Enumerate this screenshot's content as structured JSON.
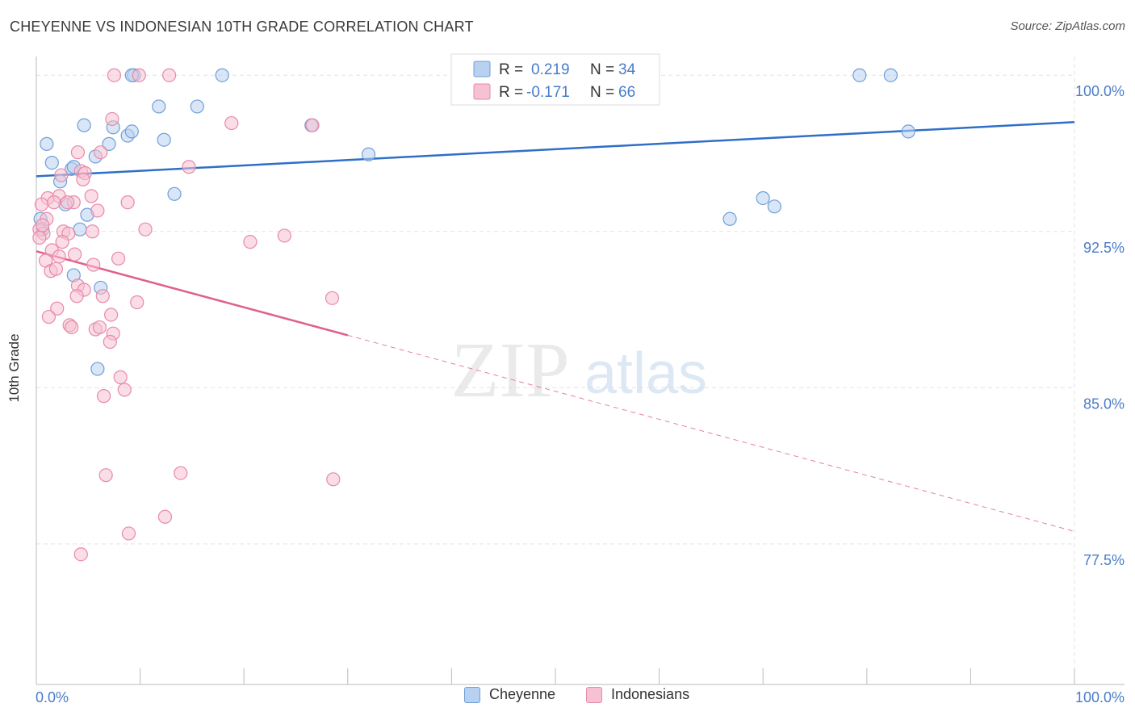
{
  "header": {
    "title": "CHEYENNE VS INDONESIAN 10TH GRADE CORRELATION CHART",
    "source": "Source: ZipAtlas.com"
  },
  "watermark": {
    "zip": "ZIP",
    "atlas": "atlas"
  },
  "colors": {
    "blue_fill": "#b8d1f0",
    "blue_stroke": "#6f9fd8",
    "blue_line": "#2f6fc7",
    "pink_fill": "#f6c1d2",
    "pink_stroke": "#e88aa8",
    "pink_line": "#e0608c",
    "axis_text": "#4a7cc8",
    "grid": "#e3e3e3"
  },
  "legend_top": {
    "rows": [
      {
        "r_label": "R =",
        "r_value": "0.219",
        "n_label": "N =",
        "n_value": "34"
      },
      {
        "r_label": "R =",
        "r_value": "-0.171",
        "n_label": "N =",
        "n_value": "66"
      }
    ]
  },
  "chart_data": {
    "type": "scatter",
    "title": "CHEYENNE VS INDONESIAN 10TH GRADE CORRELATION CHART",
    "xlabel": "",
    "ylabel": "10th Grade",
    "xlim": [
      0,
      100
    ],
    "ylim": [
      70.75,
      100.9
    ],
    "x_tick_labels": [
      "0.0%",
      "100.0%"
    ],
    "y_ticks": [
      100.0,
      92.5,
      85.0,
      77.5
    ],
    "y_tick_labels": [
      "100.0%",
      "92.5%",
      "85.0%",
      "77.5%"
    ],
    "grid": true,
    "legend": "top-center and bottom-center",
    "series": [
      {
        "name": "Cheyenne",
        "r": 0.219,
        "n": 34,
        "trend": {
          "x0": 0,
          "y0": 95.15,
          "x1": 100,
          "y1": 97.75,
          "solid_until": 100
        },
        "points": [
          [
            1.0,
            96.7
          ],
          [
            1.5,
            95.8
          ],
          [
            2.3,
            94.9
          ],
          [
            3.4,
            95.5
          ],
          [
            3.6,
            95.6
          ],
          [
            4.6,
            97.6
          ],
          [
            5.7,
            96.1
          ],
          [
            7.0,
            96.7
          ],
          [
            7.4,
            97.5
          ],
          [
            8.8,
            97.1
          ],
          [
            9.2,
            97.3
          ],
          [
            9.4,
            100.0
          ],
          [
            11.8,
            98.5
          ],
          [
            12.3,
            96.9
          ],
          [
            13.3,
            94.3
          ],
          [
            15.5,
            98.5
          ],
          [
            17.9,
            100.0
          ],
          [
            26.5,
            97.6
          ],
          [
            32.0,
            96.2
          ],
          [
            0.4,
            93.1
          ],
          [
            0.6,
            92.6
          ],
          [
            2.8,
            93.8
          ],
          [
            4.2,
            92.6
          ],
          [
            4.9,
            93.3
          ],
          [
            3.6,
            90.4
          ],
          [
            6.2,
            89.8
          ],
          [
            5.9,
            85.9
          ],
          [
            66.8,
            93.1
          ],
          [
            70.0,
            94.1
          ],
          [
            71.1,
            93.7
          ],
          [
            79.3,
            100.0
          ],
          [
            82.3,
            100.0
          ],
          [
            84.0,
            97.3
          ],
          [
            9.2,
            100.0
          ]
        ]
      },
      {
        "name": "Indonesians",
        "r": -0.171,
        "n": 66,
        "trend": {
          "x0": 0,
          "y0": 91.55,
          "x1": 100,
          "y1": 78.1,
          "solid_until": 30
        },
        "points": [
          [
            7.5,
            100.0
          ],
          [
            9.9,
            100.0
          ],
          [
            12.8,
            100.0
          ],
          [
            7.3,
            97.9
          ],
          [
            18.8,
            97.7
          ],
          [
            26.6,
            97.6
          ],
          [
            4.0,
            96.3
          ],
          [
            14.7,
            95.6
          ],
          [
            2.4,
            95.2
          ],
          [
            4.3,
            95.4
          ],
          [
            4.7,
            95.3
          ],
          [
            5.3,
            94.2
          ],
          [
            1.1,
            94.1
          ],
          [
            2.2,
            94.2
          ],
          [
            3.6,
            93.9
          ],
          [
            0.5,
            93.8
          ],
          [
            1.0,
            93.1
          ],
          [
            8.8,
            93.9
          ],
          [
            5.9,
            93.5
          ],
          [
            0.3,
            92.6
          ],
          [
            0.7,
            92.4
          ],
          [
            2.6,
            92.5
          ],
          [
            3.1,
            92.4
          ],
          [
            5.4,
            92.5
          ],
          [
            10.5,
            92.6
          ],
          [
            20.6,
            92.0
          ],
          [
            23.9,
            92.3
          ],
          [
            1.5,
            91.6
          ],
          [
            3.7,
            91.4
          ],
          [
            2.2,
            91.3
          ],
          [
            0.9,
            91.1
          ],
          [
            7.9,
            91.2
          ],
          [
            5.5,
            90.9
          ],
          [
            1.4,
            90.6
          ],
          [
            1.9,
            90.7
          ],
          [
            4.0,
            89.9
          ],
          [
            4.6,
            89.7
          ],
          [
            3.9,
            89.4
          ],
          [
            6.4,
            89.4
          ],
          [
            9.7,
            89.1
          ],
          [
            28.5,
            89.3
          ],
          [
            2.0,
            88.8
          ],
          [
            1.2,
            88.4
          ],
          [
            3.2,
            88.0
          ],
          [
            7.2,
            88.5
          ],
          [
            5.7,
            87.8
          ],
          [
            6.1,
            87.9
          ],
          [
            3.4,
            87.9
          ],
          [
            7.4,
            87.6
          ],
          [
            7.1,
            87.2
          ],
          [
            8.1,
            85.5
          ],
          [
            8.5,
            84.9
          ],
          [
            6.5,
            84.6
          ],
          [
            6.7,
            80.8
          ],
          [
            13.9,
            80.9
          ],
          [
            28.6,
            80.6
          ],
          [
            12.4,
            78.8
          ],
          [
            8.9,
            78.0
          ],
          [
            4.3,
            77.0
          ],
          [
            0.6,
            92.8
          ],
          [
            0.3,
            92.2
          ],
          [
            3.0,
            93.9
          ],
          [
            4.5,
            95.0
          ],
          [
            1.7,
            93.9
          ],
          [
            6.2,
            96.3
          ],
          [
            2.5,
            92.0
          ]
        ]
      }
    ]
  },
  "legend_bottom": {
    "items": [
      {
        "label": "Cheyenne"
      },
      {
        "label": "Indonesians"
      }
    ]
  }
}
